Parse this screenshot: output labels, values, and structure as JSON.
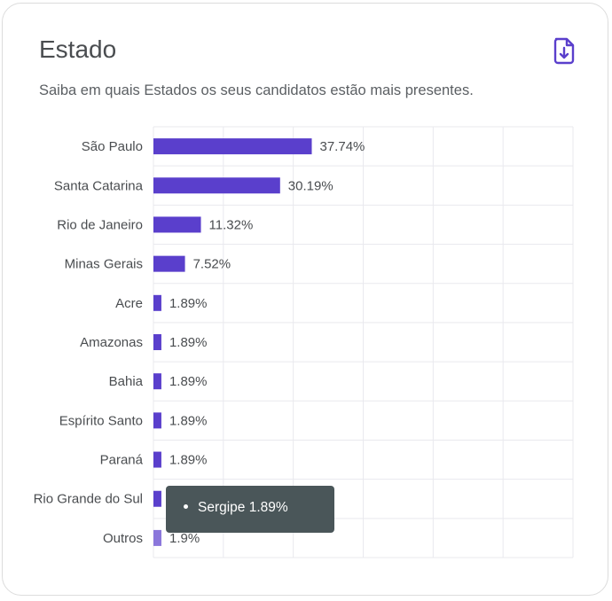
{
  "card": {
    "title": "Estado",
    "subtitle": "Saiba em quais Estados os seus candidatos estão mais presentes.",
    "download_icon": "file-download-icon"
  },
  "colors": {
    "bar": "#5a3fcc",
    "bar_highlight": "#8b77db",
    "grid": "#e9e9ee",
    "label": "#4a4d50"
  },
  "chart_data": {
    "type": "bar",
    "orientation": "horizontal",
    "categories": [
      "São Paulo",
      "Santa Catarina",
      "Rio de Janeiro",
      "Minas Gerais",
      "Acre",
      "Amazonas",
      "Bahia",
      "Espírito Santo",
      "Paraná",
      "Rio Grande do Sul",
      "Outros"
    ],
    "values": [
      37.74,
      30.19,
      11.32,
      7.52,
      1.89,
      1.89,
      1.89,
      1.89,
      1.89,
      1.89,
      1.9
    ],
    "data_labels": [
      "37.74%",
      "30.19%",
      "11.32%",
      "7.52%",
      "1.89%",
      "1.89%",
      "1.89%",
      "1.89%",
      "1.89%",
      "",
      "1.9%"
    ],
    "xlim": [
      0,
      100
    ],
    "grid": true,
    "highlighted": "Outros"
  },
  "tooltip": {
    "text": "Sergipe 1.89%"
  }
}
